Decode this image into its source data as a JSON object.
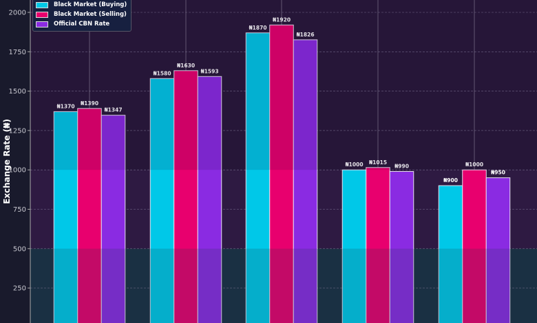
{
  "chart_data": {
    "type": "bar",
    "title": "",
    "xlabel": "",
    "ylabel": "Exchange Rate (₦)",
    "ylim": [
      0,
      2050
    ],
    "yticks": [
      250,
      500,
      750,
      1000,
      1250,
      1500,
      1750,
      2000
    ],
    "grid": true,
    "legend_position": "top-left",
    "value_prefix": "₦",
    "series": [
      {
        "name": "Black Market (Buying)",
        "color": "#00c8e8",
        "values": [
          1370,
          1580,
          1870,
          1000,
          900
        ]
      },
      {
        "name": "Black Market (Selling)",
        "color": "#e8006e",
        "values": [
          1390,
          1630,
          1920,
          1015,
          1000
        ]
      },
      {
        "name": "Official CBN Rate",
        "color": "#8a2be2",
        "values": [
          1347,
          1593,
          1826,
          990,
          950
        ]
      }
    ],
    "bands": [
      {
        "from": 0,
        "to": 500,
        "color": "#1a2f42"
      },
      {
        "from": 500,
        "to": 1000,
        "color": "#2e1a42"
      },
      {
        "from": 1000,
        "to": 2100,
        "color": "#28183a"
      }
    ]
  }
}
